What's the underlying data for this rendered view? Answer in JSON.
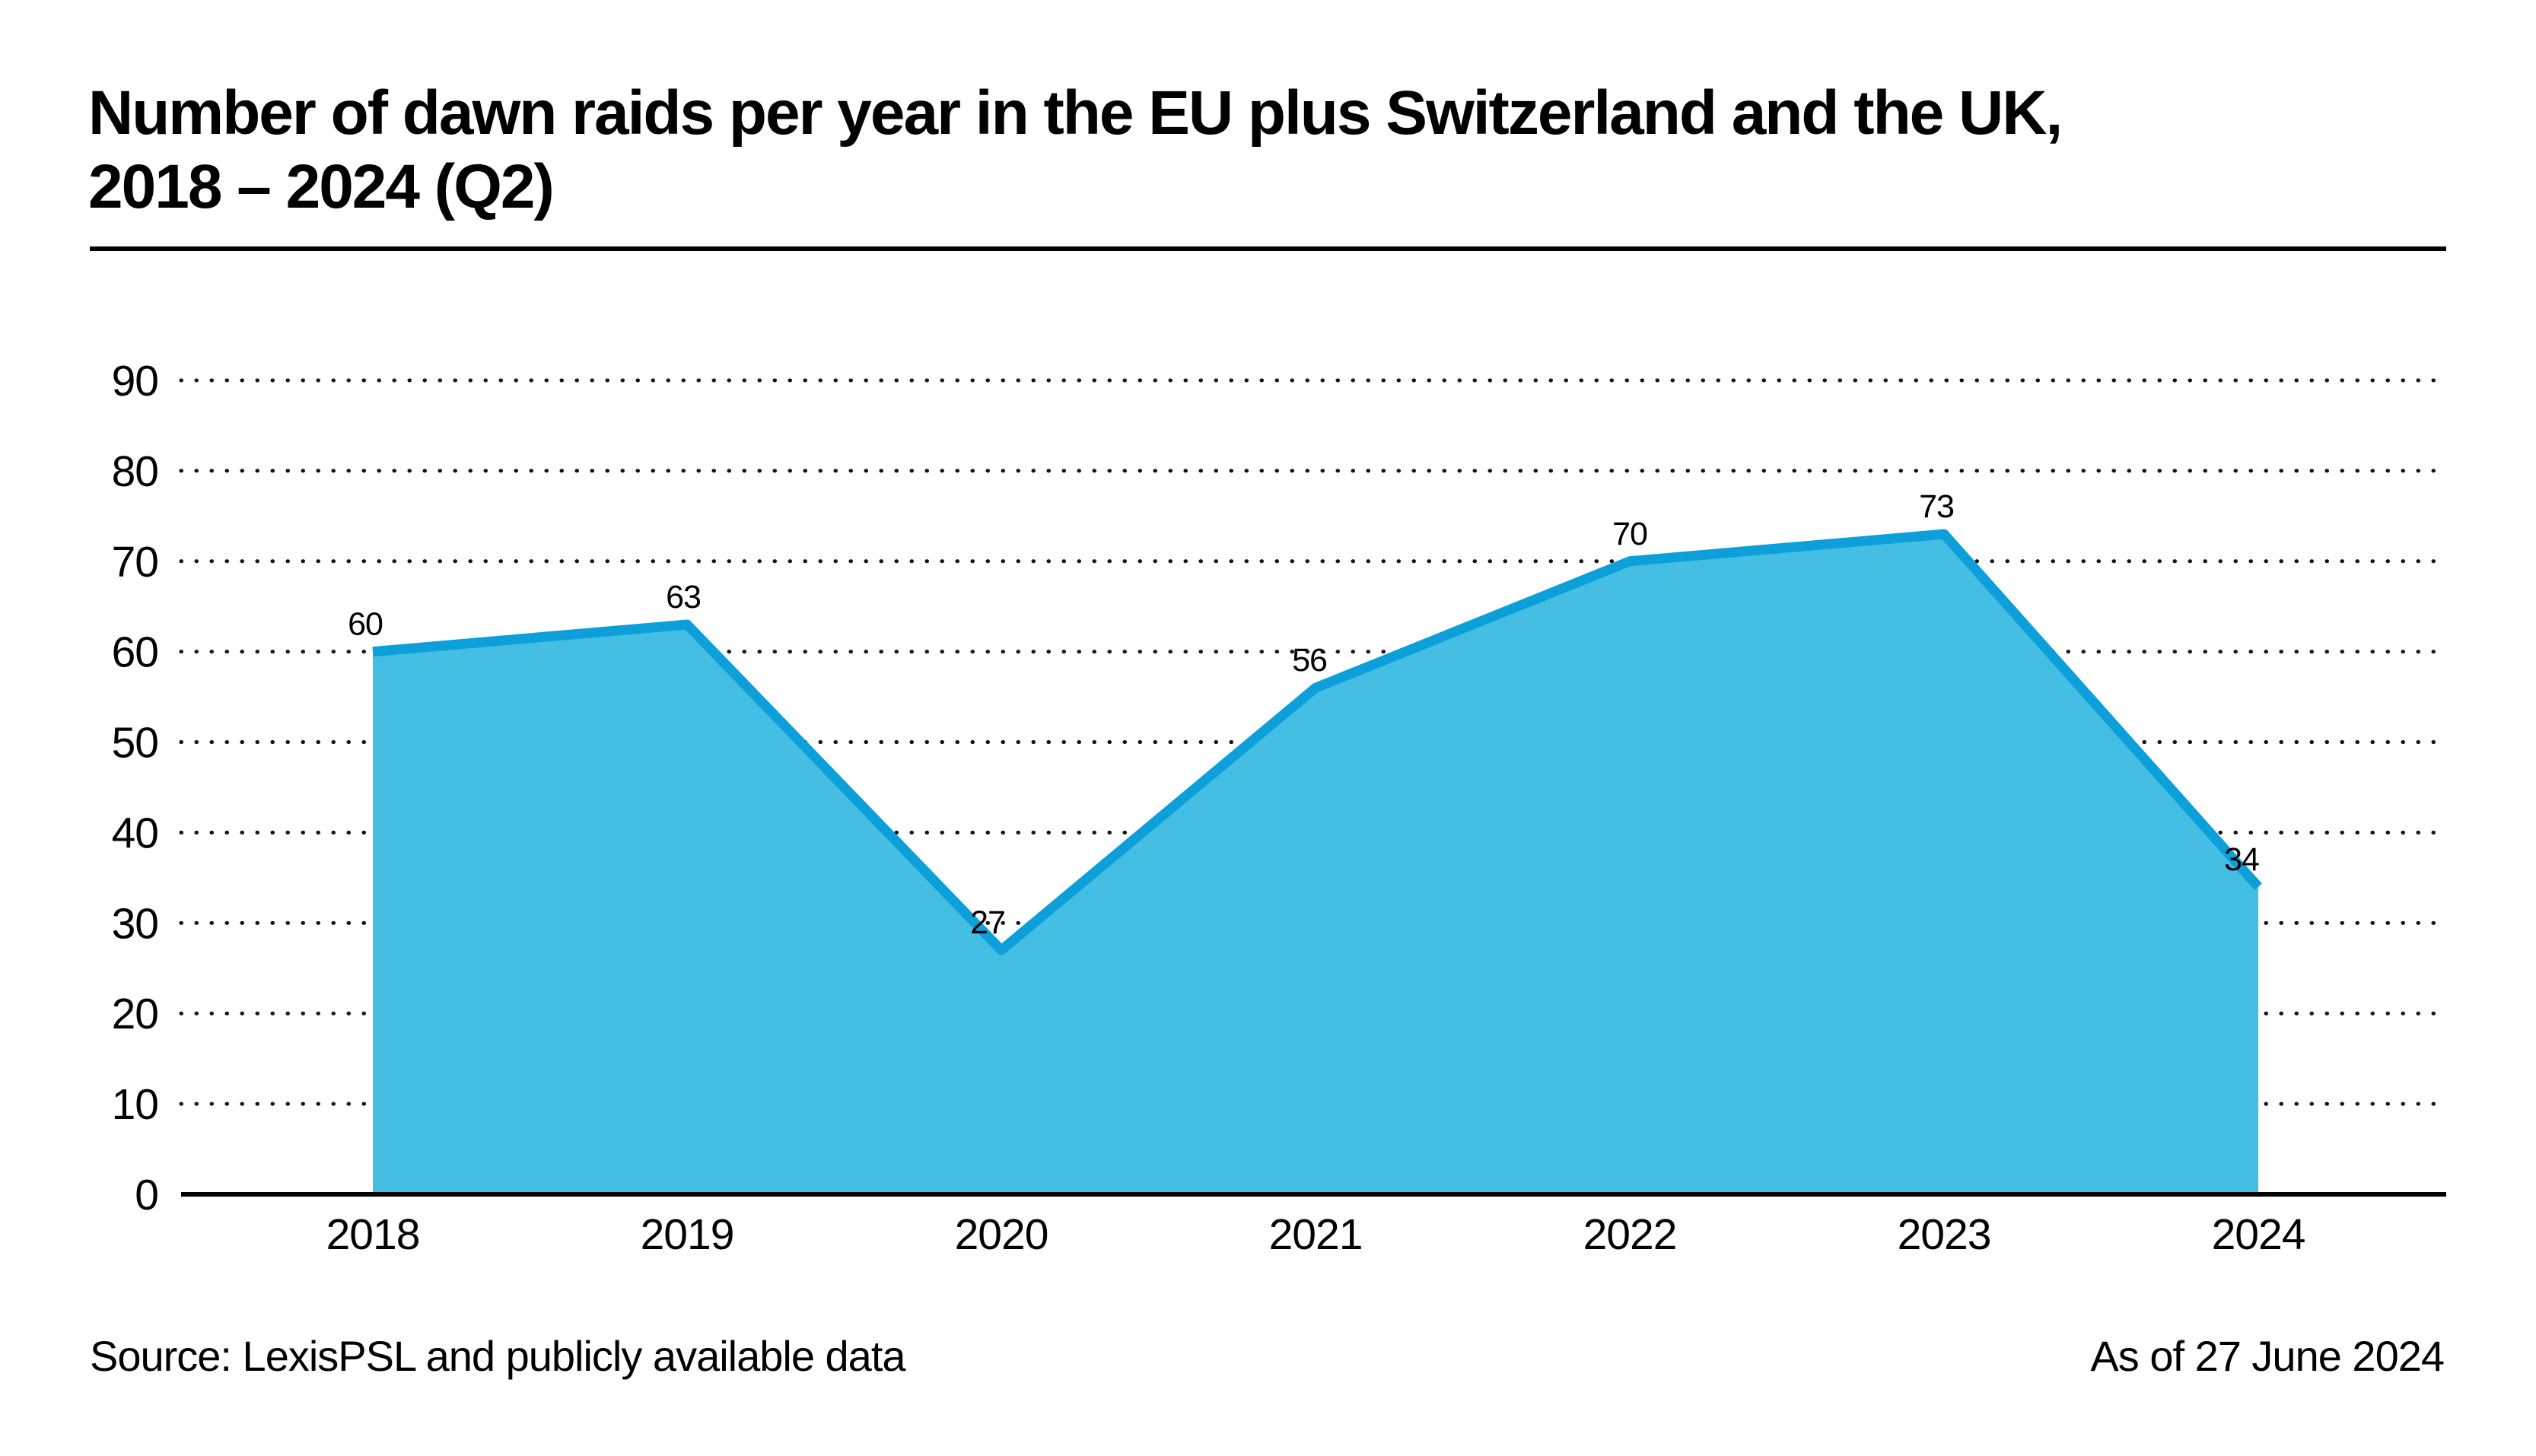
{
  "title": {
    "line1": "Number of dawn raids per year in the EU plus Switzerland and the UK,",
    "line2": "2018 – 2024 (Q2)"
  },
  "footer": {
    "source": "Source: LexisPSL and publicly available data",
    "as_of": "As of 27 June 2024"
  },
  "colors": {
    "area_fill": "#45BEE4",
    "line_stroke": "#0C9FD9",
    "axis": "#000000",
    "grid_dots": "#111111",
    "text": "#000000"
  },
  "chart_data": {
    "type": "area",
    "title": "Number of dawn raids per year in the EU plus Switzerland and the UK, 2018 – 2024 (Q2)",
    "categories": [
      "2018",
      "2019",
      "2020",
      "2021",
      "2022",
      "2023",
      "2024"
    ],
    "values": [
      60,
      63,
      27,
      56,
      70,
      73,
      34
    ],
    "xlabel": "",
    "ylabel": "",
    "ylim": [
      0,
      90
    ],
    "ytick_step": 10,
    "yticks": [
      0,
      10,
      20,
      30,
      40,
      50,
      60,
      70,
      80,
      90
    ],
    "grid": "dotted-horizontal",
    "legend": "none",
    "data_labels": true
  }
}
